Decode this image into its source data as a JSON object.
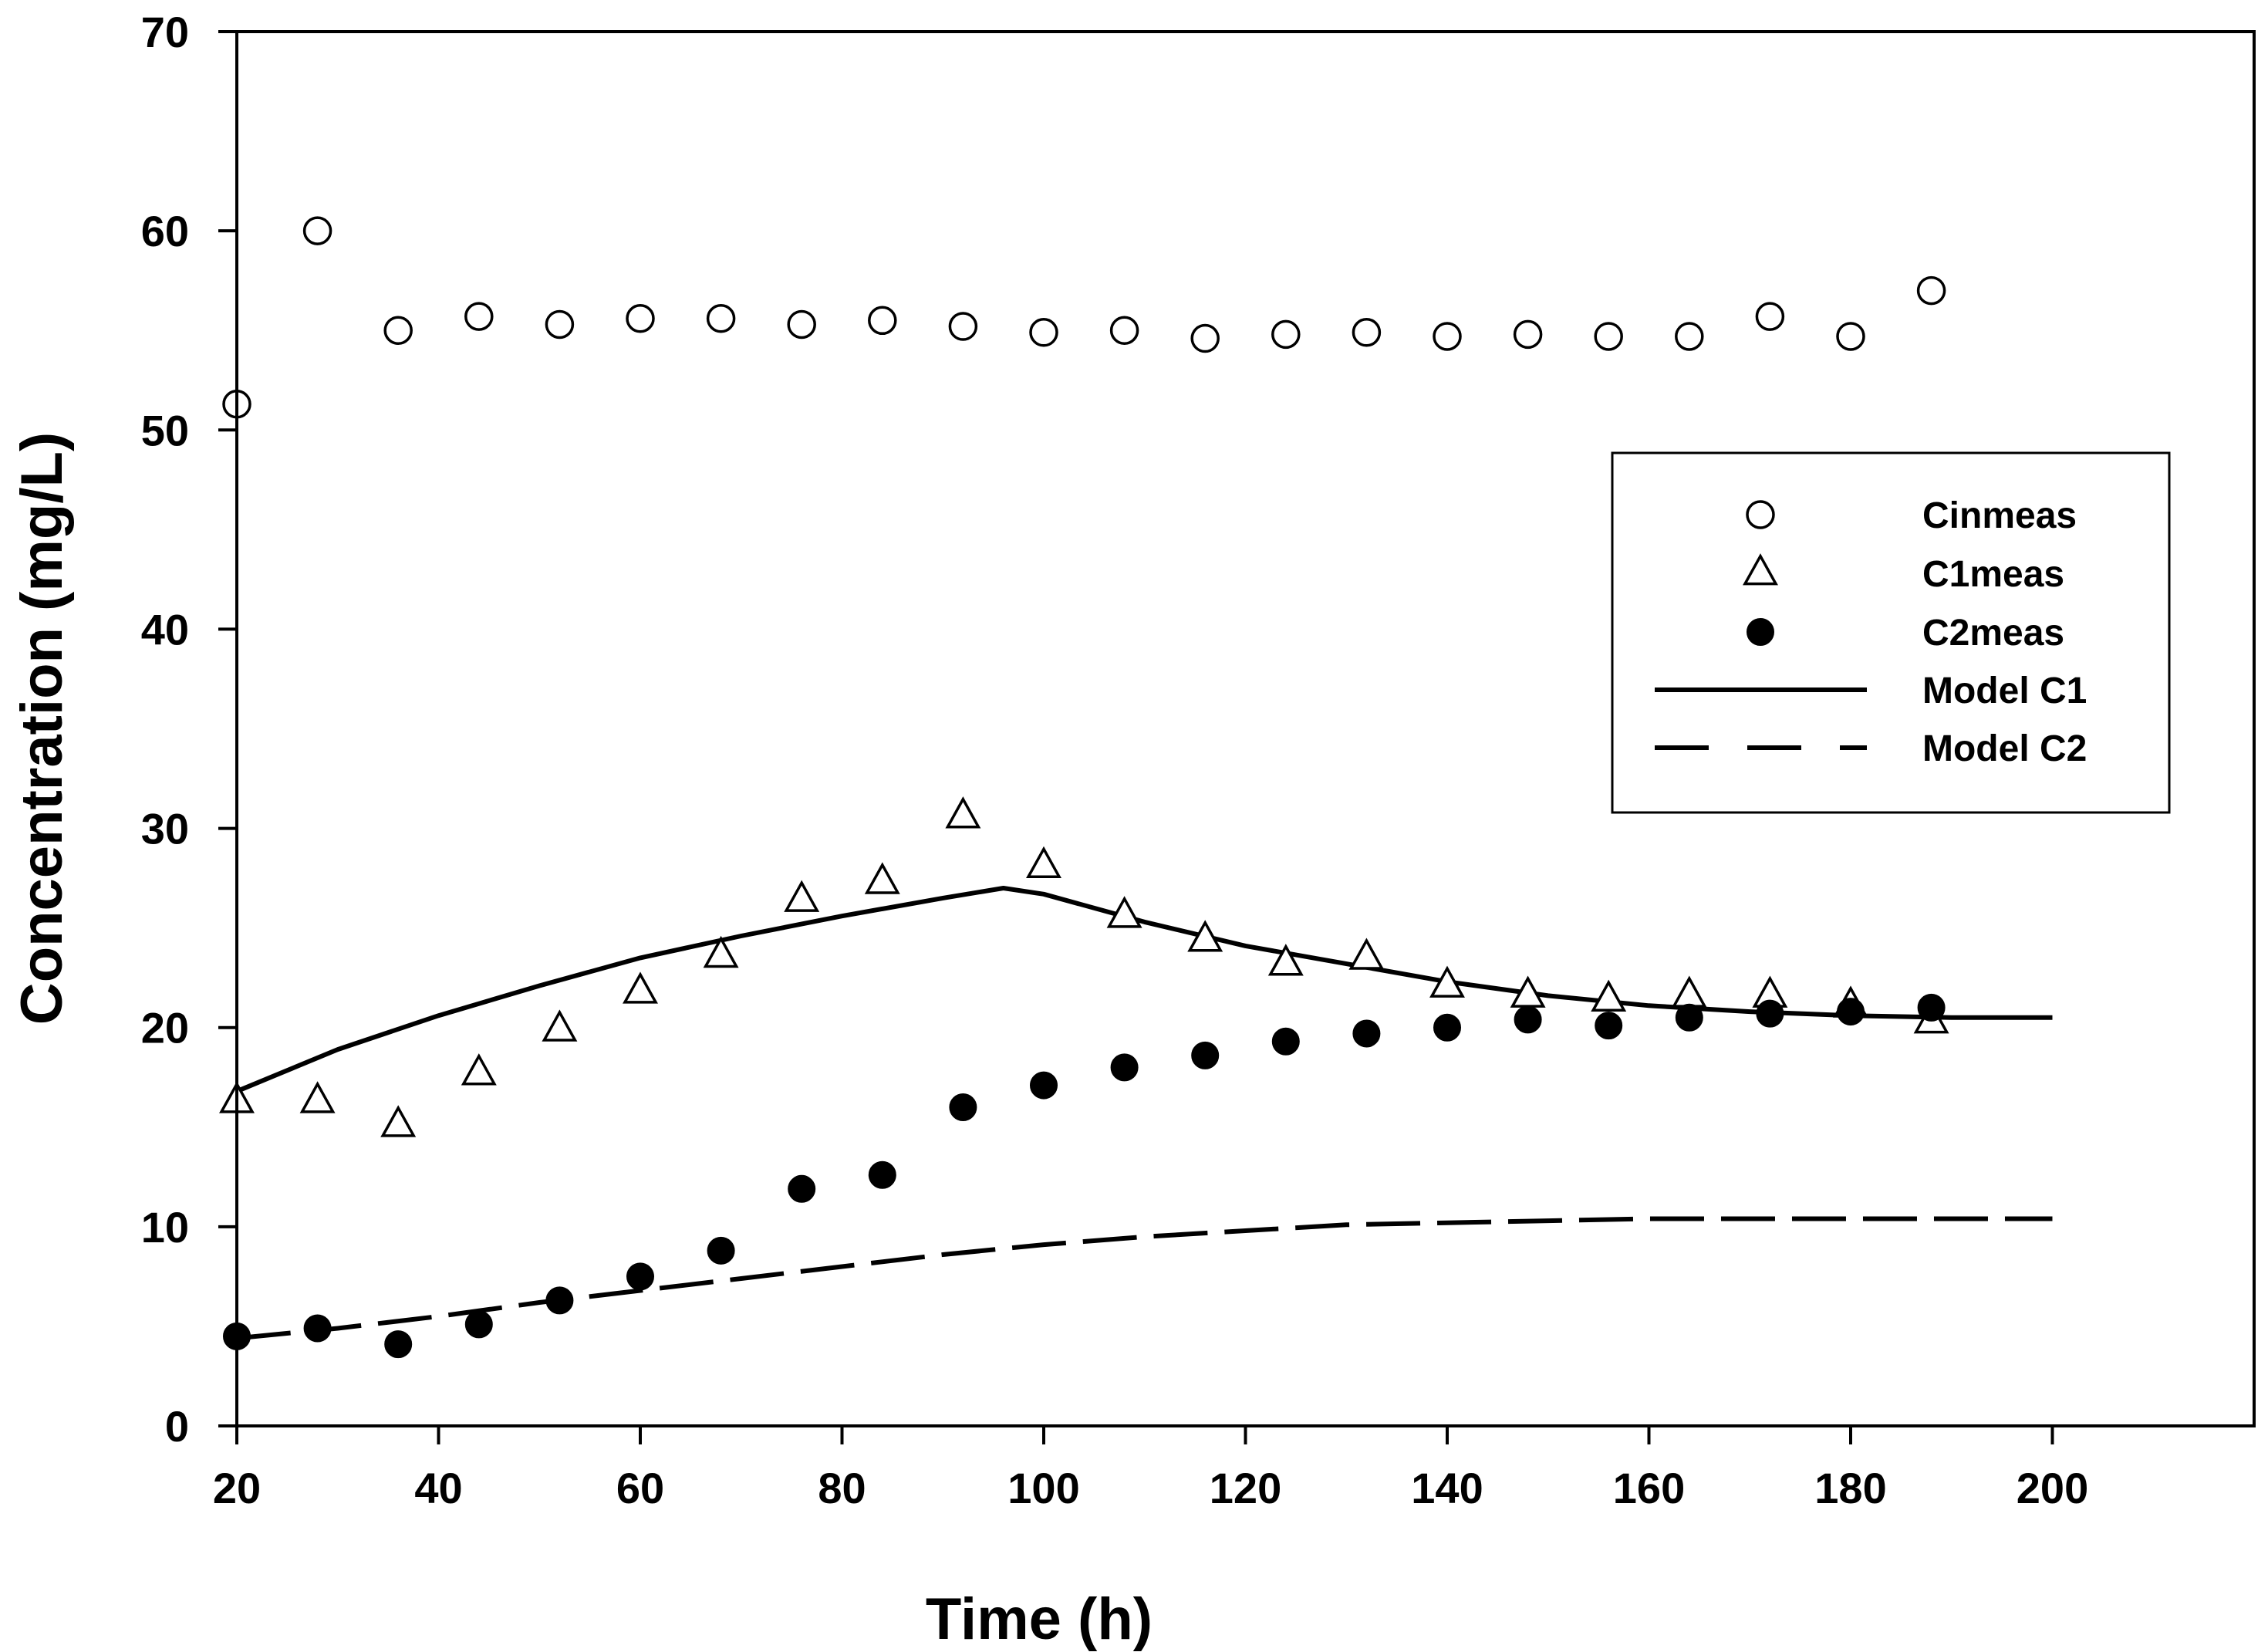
{
  "chart_data": {
    "type": "scatter",
    "title": "",
    "xlabel": "Time (h)",
    "ylabel": "Concentration (mg/L)",
    "xlim": [
      20,
      220
    ],
    "ylim": [
      0,
      70
    ],
    "xticks": [
      20,
      40,
      60,
      80,
      100,
      120,
      140,
      160,
      180,
      200
    ],
    "yticks": [
      0,
      10,
      20,
      30,
      40,
      50,
      60,
      70
    ],
    "grid": false,
    "legend_position": "right",
    "series": [
      {
        "name": "Cinmeas",
        "kind": "scatter",
        "marker": "open-circle",
        "x": [
          20,
          28,
          36,
          44,
          52,
          60,
          68,
          76,
          84,
          92,
          100,
          108,
          116,
          124,
          132,
          140,
          148,
          156,
          164,
          172,
          180,
          188
        ],
        "values": [
          51.3,
          60.0,
          55.0,
          55.7,
          55.3,
          55.6,
          55.6,
          55.3,
          55.5,
          55.2,
          54.9,
          55.0,
          54.6,
          54.8,
          54.9,
          54.7,
          54.8,
          54.7,
          54.7,
          55.7,
          54.7,
          57.0
        ]
      },
      {
        "name": "C1meas",
        "kind": "scatter",
        "marker": "open-triangle",
        "x": [
          20,
          28,
          36,
          44,
          52,
          60,
          68,
          76,
          84,
          92,
          100,
          108,
          116,
          124,
          132,
          140,
          148,
          156,
          164,
          172,
          180,
          188
        ],
        "values": [
          16.3,
          16.3,
          15.1,
          17.7,
          19.9,
          21.8,
          23.6,
          26.4,
          27.3,
          30.6,
          28.1,
          25.6,
          24.4,
          23.2,
          23.5,
          22.1,
          21.6,
          21.4,
          21.6,
          21.6,
          21.1,
          20.3
        ]
      },
      {
        "name": "C2meas",
        "kind": "scatter",
        "marker": "filled-circle",
        "x": [
          20,
          28,
          36,
          44,
          52,
          60,
          68,
          76,
          84,
          92,
          100,
          108,
          116,
          124,
          132,
          140,
          148,
          156,
          164,
          172,
          180,
          188
        ],
        "values": [
          4.5,
          4.9,
          4.1,
          5.1,
          6.3,
          7.5,
          8.8,
          11.9,
          12.6,
          16.0,
          17.1,
          18.0,
          18.6,
          19.3,
          19.7,
          20.0,
          20.4,
          20.1,
          20.5,
          20.7,
          20.8,
          21.0
        ]
      },
      {
        "name": "Model C1",
        "kind": "line",
        "dash": "solid",
        "x": [
          20,
          30,
          40,
          50,
          60,
          70,
          80,
          90,
          96,
          100,
          110,
          120,
          130,
          140,
          150,
          160,
          170,
          180,
          190,
          200
        ],
        "values": [
          16.8,
          18.9,
          20.6,
          22.1,
          23.5,
          24.6,
          25.6,
          26.5,
          27.0,
          26.7,
          25.3,
          24.1,
          23.2,
          22.3,
          21.6,
          21.1,
          20.8,
          20.6,
          20.5,
          20.5
        ]
      },
      {
        "name": "Model C2",
        "kind": "line",
        "dash": "dashed",
        "x": [
          20,
          30,
          40,
          50,
          60,
          70,
          80,
          90,
          100,
          110,
          120,
          130,
          140,
          150,
          160,
          170,
          180,
          190,
          200
        ],
        "values": [
          4.4,
          4.9,
          5.5,
          6.2,
          6.8,
          7.4,
          8.0,
          8.6,
          9.1,
          9.5,
          9.8,
          10.1,
          10.2,
          10.3,
          10.4,
          10.4,
          10.4,
          10.4,
          10.4
        ]
      }
    ]
  }
}
